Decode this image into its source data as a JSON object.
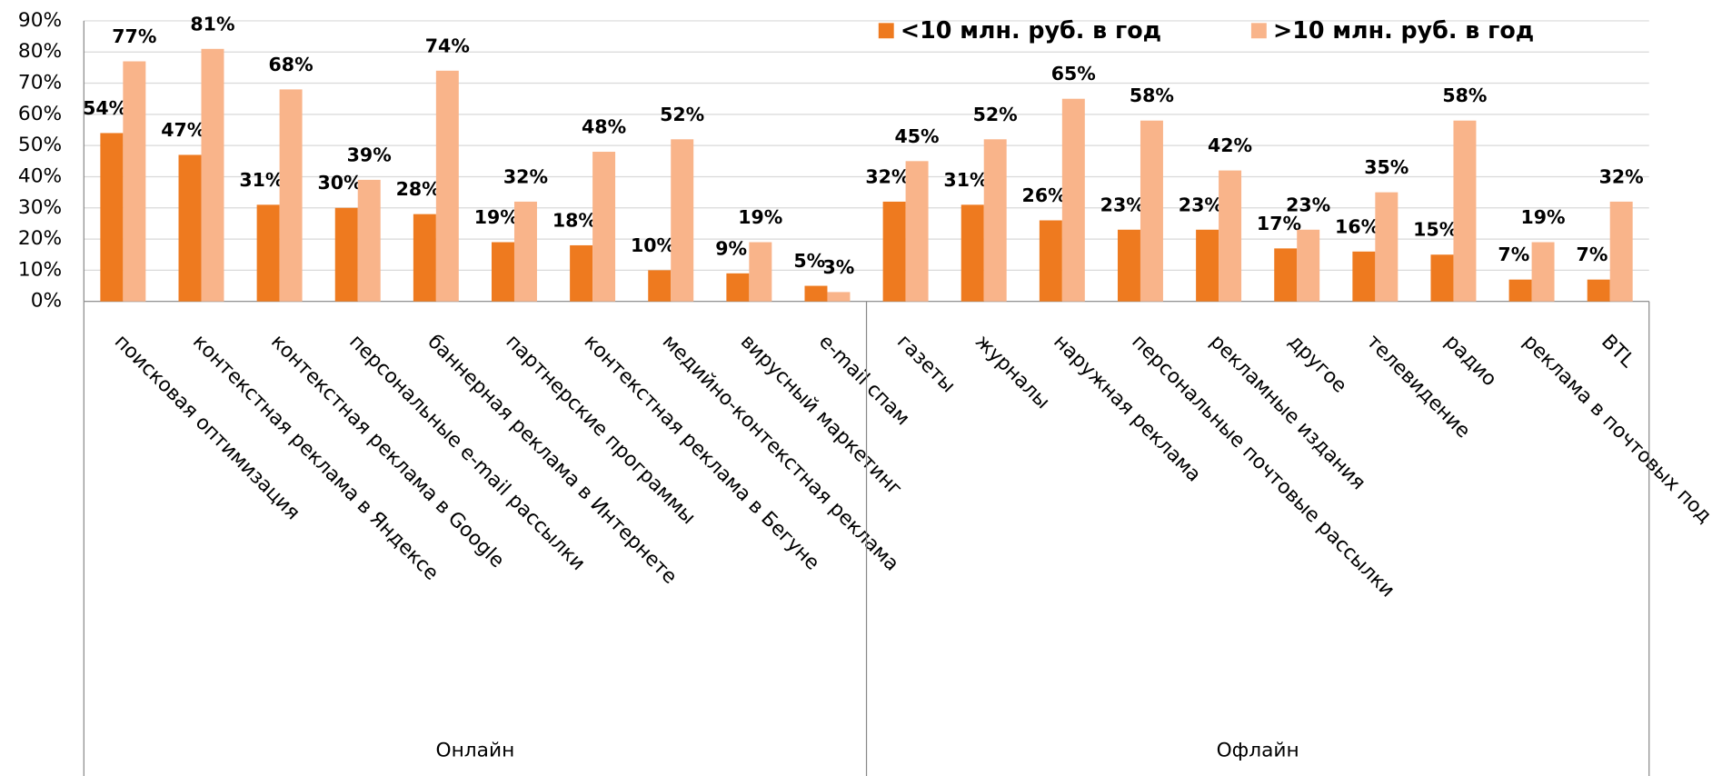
{
  "chart_data": {
    "type": "bar",
    "groups": [
      {
        "name": "Онлайн",
        "categories": [
          "поисковая оптимизация",
          "контекстная реклама в Яндексе",
          "контекстная реклама в Google",
          "персональные e-mail рассылки",
          "баннерная реклама в Интернете",
          "партнерские программы",
          "контекстная реклама в Бегуне",
          "медийно-контекстная реклама",
          "вирусный маркетинг",
          "e-mail спам"
        ]
      },
      {
        "name": "Офлайн",
        "categories": [
          "газеты",
          "журналы",
          "наружная реклама",
          "персональные почтовые рассылки",
          "рекламные издания",
          "другое",
          "телевидение",
          "радио",
          "реклама в почтовых под",
          "BTL"
        ]
      }
    ],
    "series": [
      {
        "name": "<10 млн. руб. в год",
        "color": "#ee7a1f",
        "values": [
          54,
          47,
          31,
          30,
          28,
          19,
          18,
          10,
          9,
          5,
          32,
          31,
          26,
          23,
          23,
          17,
          16,
          15,
          7,
          7
        ],
        "value_labels": [
          "54%",
          "47%",
          "31%",
          "30%",
          "28%",
          "19%",
          "18%",
          "10%",
          "9%",
          "5%",
          "32%",
          "31%",
          "26%",
          "23%",
          "23%",
          "17%",
          "16%",
          "15%",
          "7%",
          "7%"
        ]
      },
      {
        "name": ">10 млн. руб. в год",
        "color": "#f9b48a",
        "values": [
          77,
          81,
          68,
          39,
          74,
          32,
          48,
          52,
          19,
          3,
          45,
          52,
          65,
          58,
          42,
          23,
          35,
          58,
          19,
          32
        ],
        "value_labels": [
          "77%",
          "81%",
          "68%",
          "39%",
          "74%",
          "32%",
          "48%",
          "52%",
          "19%",
          "3%",
          "45%",
          "52%",
          "65%",
          "58%",
          "42%",
          "23%",
          "35%",
          "58%",
          "19%",
          "32%"
        ]
      }
    ],
    "ylim": [
      0,
      90
    ],
    "yticks": [
      {
        "value": 0,
        "label": "0%"
      },
      {
        "value": 10,
        "label": "10%"
      },
      {
        "value": 20,
        "label": "20%"
      },
      {
        "value": 30,
        "label": "30%"
      },
      {
        "value": 40,
        "label": "40%"
      },
      {
        "value": 50,
        "label": "50%"
      },
      {
        "value": 60,
        "label": "60%"
      },
      {
        "value": 70,
        "label": "70%"
      },
      {
        "value": 80,
        "label": "80%"
      },
      {
        "value": 90,
        "label": "90%"
      }
    ],
    "grid": true,
    "legend": "top-right"
  }
}
